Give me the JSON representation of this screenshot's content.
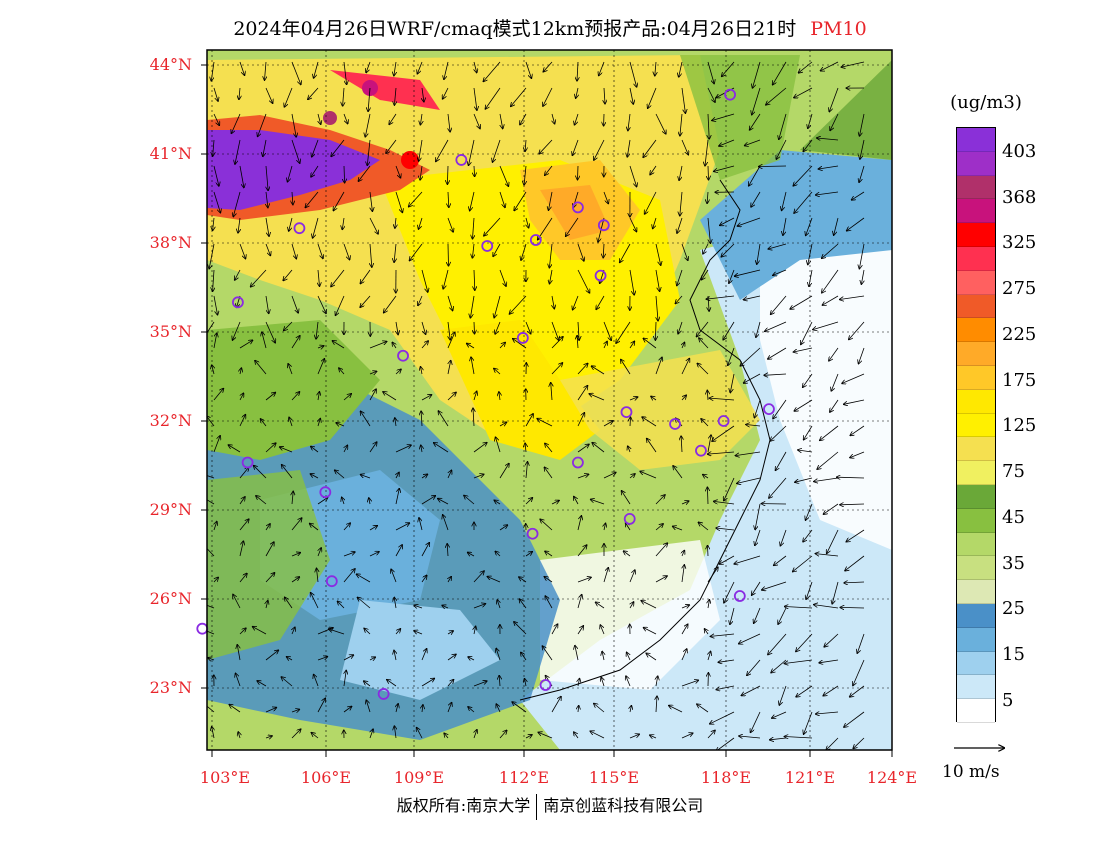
{
  "title": {
    "main": "2024年04月26日WRF/cmaq模式12km预报产品:04月26日21时",
    "pollutant": "PM10"
  },
  "lat_labels": [
    "44°N",
    "41°N",
    "38°N",
    "35°N",
    "32°N",
    "29°N",
    "26°N",
    "23°N"
  ],
  "lon_labels": [
    "103°E",
    "106°E",
    "109°E",
    "112°E",
    "115°E",
    "118°E",
    "121°E",
    "124°E"
  ],
  "colorbar": {
    "unit": "(ug/m3)",
    "labels": [
      "403",
      "368",
      "325",
      "275",
      "225",
      "175",
      "125",
      "75",
      "45",
      "35",
      "25",
      "15",
      "5"
    ],
    "colors": [
      "#8a30d8",
      "#9e2fc8",
      "#b0306a",
      "#c8127c",
      "#ff0000",
      "#ff3050",
      "#ff6060",
      "#f05a28",
      "#ff8c00",
      "#ffaa28",
      "#ffc828",
      "#ffe800",
      "#fff000",
      "#f5e050",
      "#f0f060",
      "#6aa838",
      "#88c040",
      "#b4d868",
      "#c8e080",
      "#dde8b4",
      "#4a90c8",
      "#6ab0dc",
      "#9ed0ee",
      "#cce8f8",
      "#ffffff"
    ]
  },
  "wind_reference": {
    "label": "10 m/s"
  },
  "copyright": {
    "prefix": "版权所有:",
    "org1": "南京大学",
    "org2": "南京创蓝科技有限公司"
  },
  "cities": [
    {
      "lon": 119.0,
      "lat": 43.0
    },
    {
      "lon": 110.7,
      "lat": 40.8
    },
    {
      "lon": 105.7,
      "lat": 38.5
    },
    {
      "lon": 111.5,
      "lat": 37.9
    },
    {
      "lon": 113.0,
      "lat": 38.1
    },
    {
      "lon": 114.3,
      "lat": 39.2
    },
    {
      "lon": 115.1,
      "lat": 38.6
    },
    {
      "lon": 115.0,
      "lat": 36.9
    },
    {
      "lon": 103.8,
      "lat": 36.0
    },
    {
      "lon": 112.6,
      "lat": 34.8
    },
    {
      "lon": 108.9,
      "lat": 34.2
    },
    {
      "lon": 117.3,
      "lat": 31.9
    },
    {
      "lon": 118.8,
      "lat": 32.0
    },
    {
      "lon": 120.2,
      "lat": 32.4
    },
    {
      "lon": 115.8,
      "lat": 32.3
    },
    {
      "lon": 114.3,
      "lat": 30.6
    },
    {
      "lon": 104.1,
      "lat": 30.6
    },
    {
      "lon": 106.5,
      "lat": 29.6
    },
    {
      "lon": 118.1,
      "lat": 31.0
    },
    {
      "lon": 115.9,
      "lat": 28.7
    },
    {
      "lon": 112.9,
      "lat": 28.2
    },
    {
      "lon": 106.7,
      "lat": 26.6
    },
    {
      "lon": 119.3,
      "lat": 26.1
    },
    {
      "lon": 102.7,
      "lat": 25.0
    },
    {
      "lon": 108.3,
      "lat": 22.8
    },
    {
      "lon": 113.3,
      "lat": 23.1
    }
  ]
}
